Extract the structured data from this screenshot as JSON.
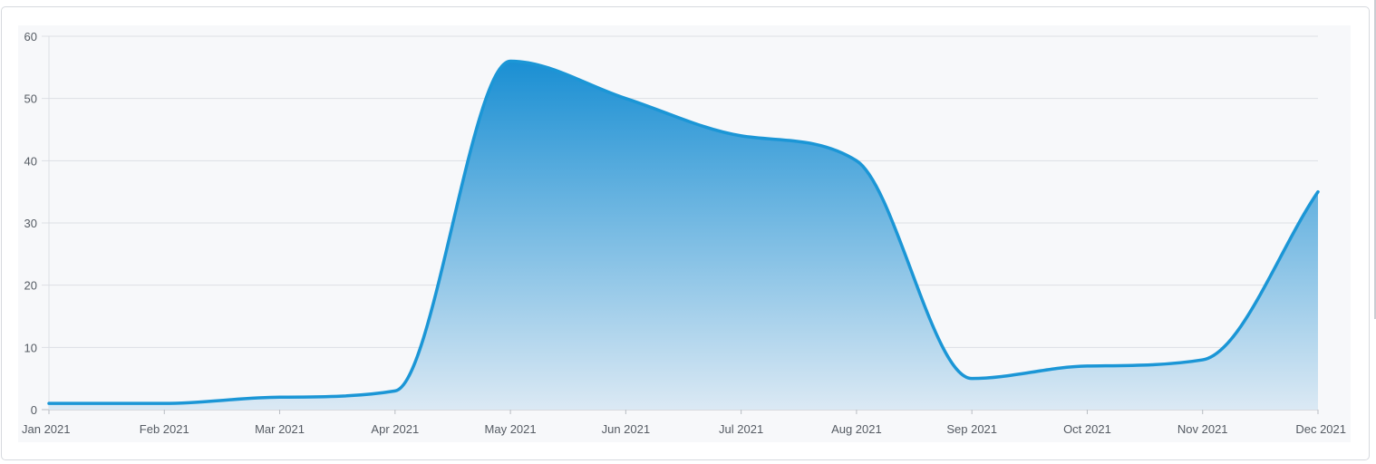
{
  "chart_data": {
    "type": "area",
    "categories": [
      "Jan 2021",
      "Feb 2021",
      "Mar 2021",
      "Apr 2021",
      "May 2021",
      "Jun 2021",
      "Jul 2021",
      "Aug 2021",
      "Sep 2021",
      "Oct 2021",
      "Nov 2021",
      "Dec 2021"
    ],
    "series": [
      {
        "values": [
          1,
          1,
          2,
          3,
          56,
          50,
          44,
          40,
          5,
          7,
          8,
          35
        ]
      }
    ],
    "ylim": [
      0,
      60
    ],
    "yticks": [
      "0",
      "10",
      "20",
      "30",
      "40",
      "50",
      "60"
    ],
    "grid": true,
    "line_color": "#1b96d6",
    "fill_top_color": "#1a8fd3",
    "fill_bottom_color": "#dbe9f4",
    "gridline_color": "#dcdfe4",
    "axis_color": "#b8bcc2"
  }
}
